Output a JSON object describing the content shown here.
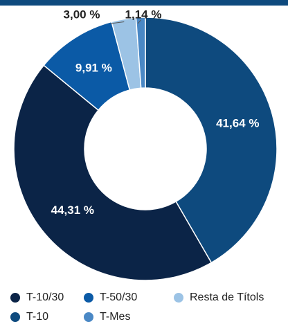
{
  "chart_data": {
    "type": "donut",
    "categories": [
      "T-10",
      "T-10/30",
      "T-50/30",
      "Resta de Títols",
      "T-Mes"
    ],
    "values": [
      41.64,
      44.31,
      9.91,
      3.0,
      1.14
    ],
    "value_labels": [
      "41,64 %",
      "44,31 %",
      "9,91 %",
      "3,00 %",
      "1,14 %"
    ],
    "colors": [
      "#0e4a7e",
      "#0b2447",
      "#0b5aa6",
      "#9cc3e5",
      "#4a88c5"
    ]
  }
}
